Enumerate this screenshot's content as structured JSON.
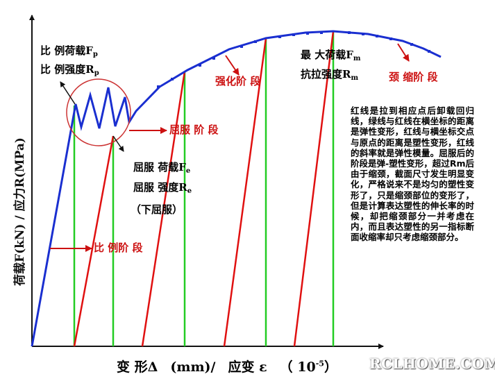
{
  "labels": {
    "proportional_load": "比 例荷载F",
    "proportional_load_sub": "p",
    "proportional_strength": "比 例强度R",
    "proportional_strength_sub": "p",
    "yield_load": "屈服 荷载F",
    "yield_load_sub": "e",
    "yield_strength": "屈服 强度R",
    "yield_strength_sub": "e",
    "lower_yield": "（下屈服）",
    "max_load": "最 大荷载F",
    "max_load_sub": "m",
    "tensile_strength": "抗拉强度R",
    "tensile_strength_sub": "m",
    "stage_proportional": "比 例阶 段",
    "stage_yield": "屈服 阶 段",
    "stage_strengthening": "强化阶 段",
    "stage_necking": "颈 缩阶 段"
  },
  "axes": {
    "y_label": "荷载F(kN) / 应力R(MPa)",
    "x_label_part1": "变 形Δ",
    "x_label_part2": "(mm)/",
    "x_label_part3": "应变 ε",
    "x_label_part4": "（  10",
    "x_label_exp": "-5",
    "x_label_part5": "）"
  },
  "note": "红线是拉到相应点后卸载回归线，绿线与红线在横坐标的距离是弹性变形，红线与横坐标交点与原点的距离是塑性变形，红线的斜率就是弹性模量。屈服后的阶段是弹-塑性变形，超过Rm后由于缩颈，截面尺寸发生明显变化，严格说来不是均匀的塑性变形了，只是缩颈部位的变形了，但是计算表达塑性的伸长率的时候，却把缩颈部分一并考虑在内，而且表达塑性的另一指标断面收缩率却只考虑缩颈部分。",
  "watermark": "RCLHOME.COM",
  "colors": {
    "curve": "#1a2fd0",
    "unload_line": "#e01010",
    "elastic_line": "#22cc22",
    "annotation": "#cc1111",
    "axis": "#111111"
  }
}
